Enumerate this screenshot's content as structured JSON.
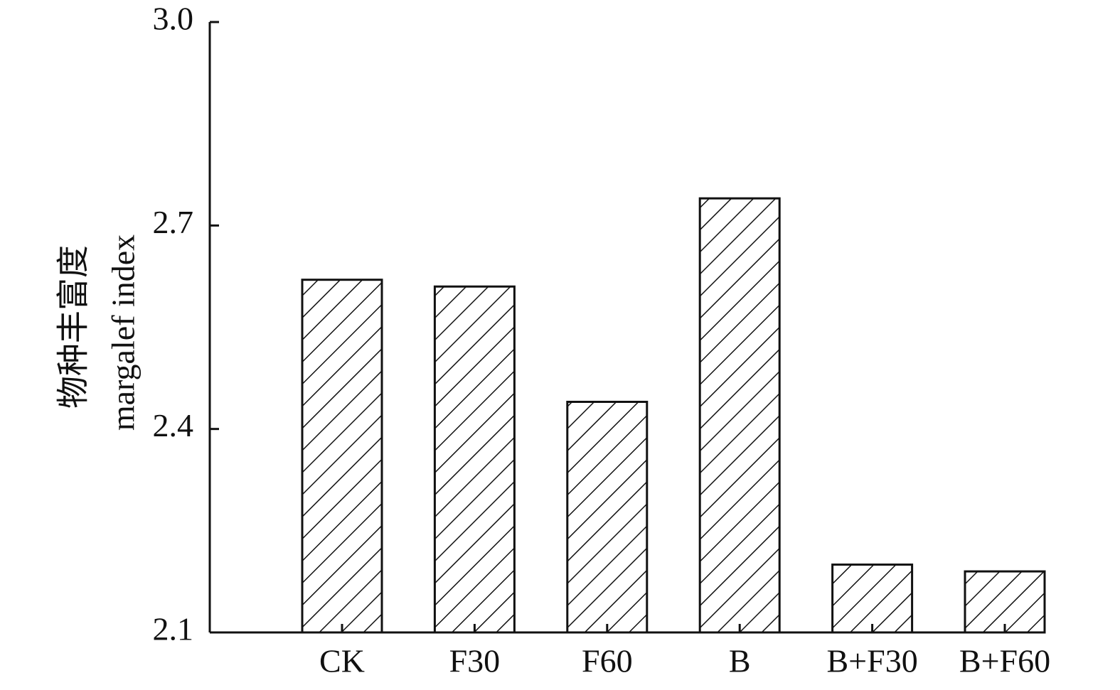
{
  "chart_data": {
    "type": "bar",
    "y_label": [
      "物种丰富度",
      "margalef index"
    ],
    "categories": [
      "CK",
      "F30",
      "F60",
      "B",
      "B+F30",
      "B+F60"
    ],
    "values": [
      2.62,
      2.61,
      2.44,
      2.74,
      2.2,
      2.19
    ],
    "color": "#111111",
    "ylim": [
      2.1,
      3.0
    ],
    "yticks": [
      2.1,
      2.4,
      2.7,
      {
        "value": 3.0,
        "label": "3.0"
      }
    ]
  }
}
